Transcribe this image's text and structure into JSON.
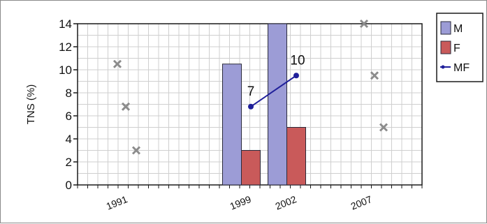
{
  "chart_data": {
    "type": "bar",
    "ylabel": "TNS (%)",
    "xlabel": "",
    "title": "",
    "ylim": [
      0,
      14
    ],
    "yticks": [
      0,
      2,
      4,
      6,
      8,
      10,
      12,
      14
    ],
    "xticks": [
      "1991",
      "1999",
      "2002",
      "2007"
    ],
    "grid": true,
    "legend_position": "top-right",
    "categories": [
      "1999",
      "2002"
    ],
    "series": [
      {
        "name": "M",
        "type": "bar",
        "color": "#9c9cd6",
        "values": [
          10.5,
          14
        ]
      },
      {
        "name": "F",
        "type": "bar",
        "color": "#c95a5a",
        "values": [
          3,
          5
        ]
      },
      {
        "name": "MF",
        "type": "line",
        "color": "#1f1f9a",
        "values": [
          6.8,
          9.5
        ],
        "labels": [
          "7",
          "10"
        ]
      }
    ],
    "markers": [
      {
        "x_tick": "1991",
        "values": [
          10.5,
          6.8,
          3
        ]
      },
      {
        "x_tick": "2007",
        "values": [
          14,
          9.5,
          5
        ]
      }
    ],
    "marker_color": "#8c8c8c"
  }
}
